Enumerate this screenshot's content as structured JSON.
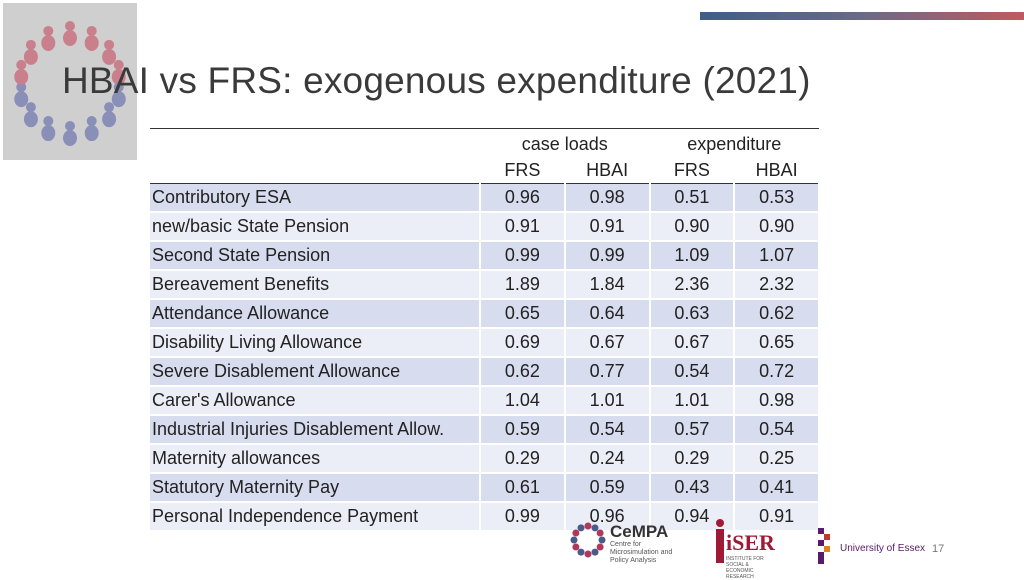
{
  "slide": {
    "title": "HBAI vs FRS: exogenous expenditure (2021)",
    "page_number": "17"
  },
  "table": {
    "group_headers": [
      "case loads",
      "expenditure"
    ],
    "sub_headers": [
      "FRS",
      "HBAI",
      "FRS",
      "HBAI"
    ],
    "rows": [
      {
        "label": "Contributory ESA",
        "values": [
          "0.96",
          "0.98",
          "0.51",
          "0.53"
        ]
      },
      {
        "label": "new/basic State Pension",
        "values": [
          "0.91",
          "0.91",
          "0.90",
          "0.90"
        ]
      },
      {
        "label": "Second State Pension",
        "values": [
          "0.99",
          "0.99",
          "1.09",
          "1.07"
        ]
      },
      {
        "label": "Bereavement Benefits",
        "values": [
          "1.89",
          "1.84",
          "2.36",
          "2.32"
        ]
      },
      {
        "label": "Attendance Allowance",
        "values": [
          "0.65",
          "0.64",
          "0.63",
          "0.62"
        ]
      },
      {
        "label": "Disability Living Allowance",
        "values": [
          "0.69",
          "0.67",
          "0.67",
          "0.65"
        ]
      },
      {
        "label": "Severe Disablement Allowance",
        "values": [
          "0.62",
          "0.77",
          "0.54",
          "0.72"
        ]
      },
      {
        "label": "Carer's Allowance",
        "values": [
          "1.04",
          "1.01",
          "1.01",
          "0.98"
        ]
      },
      {
        "label": "Industrial Injuries Disablement Allow.",
        "values": [
          "0.59",
          "0.54",
          "0.57",
          "0.54"
        ]
      },
      {
        "label": "Maternity allowances",
        "values": [
          "0.29",
          "0.24",
          "0.29",
          "0.25"
        ]
      },
      {
        "label": "Statutory Maternity Pay",
        "values": [
          "0.61",
          "0.59",
          "0.43",
          "0.41"
        ]
      },
      {
        "label": "Personal Independence Payment",
        "values": [
          "0.99",
          "0.96",
          "0.94",
          "0.91"
        ]
      }
    ]
  },
  "logos": {
    "cempa": {
      "name": "CeMPA",
      "subtitle": "Centre for Microsimulation and Policy Analysis"
    },
    "iser": {
      "name": "iSER",
      "subtitle": "INSTITUTE FOR SOCIAL & ECONOMIC RESEARCH"
    },
    "essex": {
      "name": "University of Essex"
    }
  },
  "colors": {
    "row_dark": "#d8dcef",
    "row_light": "#eceef7",
    "iser_red": "#a01a38",
    "essex_purple": "#5a1a6a"
  }
}
